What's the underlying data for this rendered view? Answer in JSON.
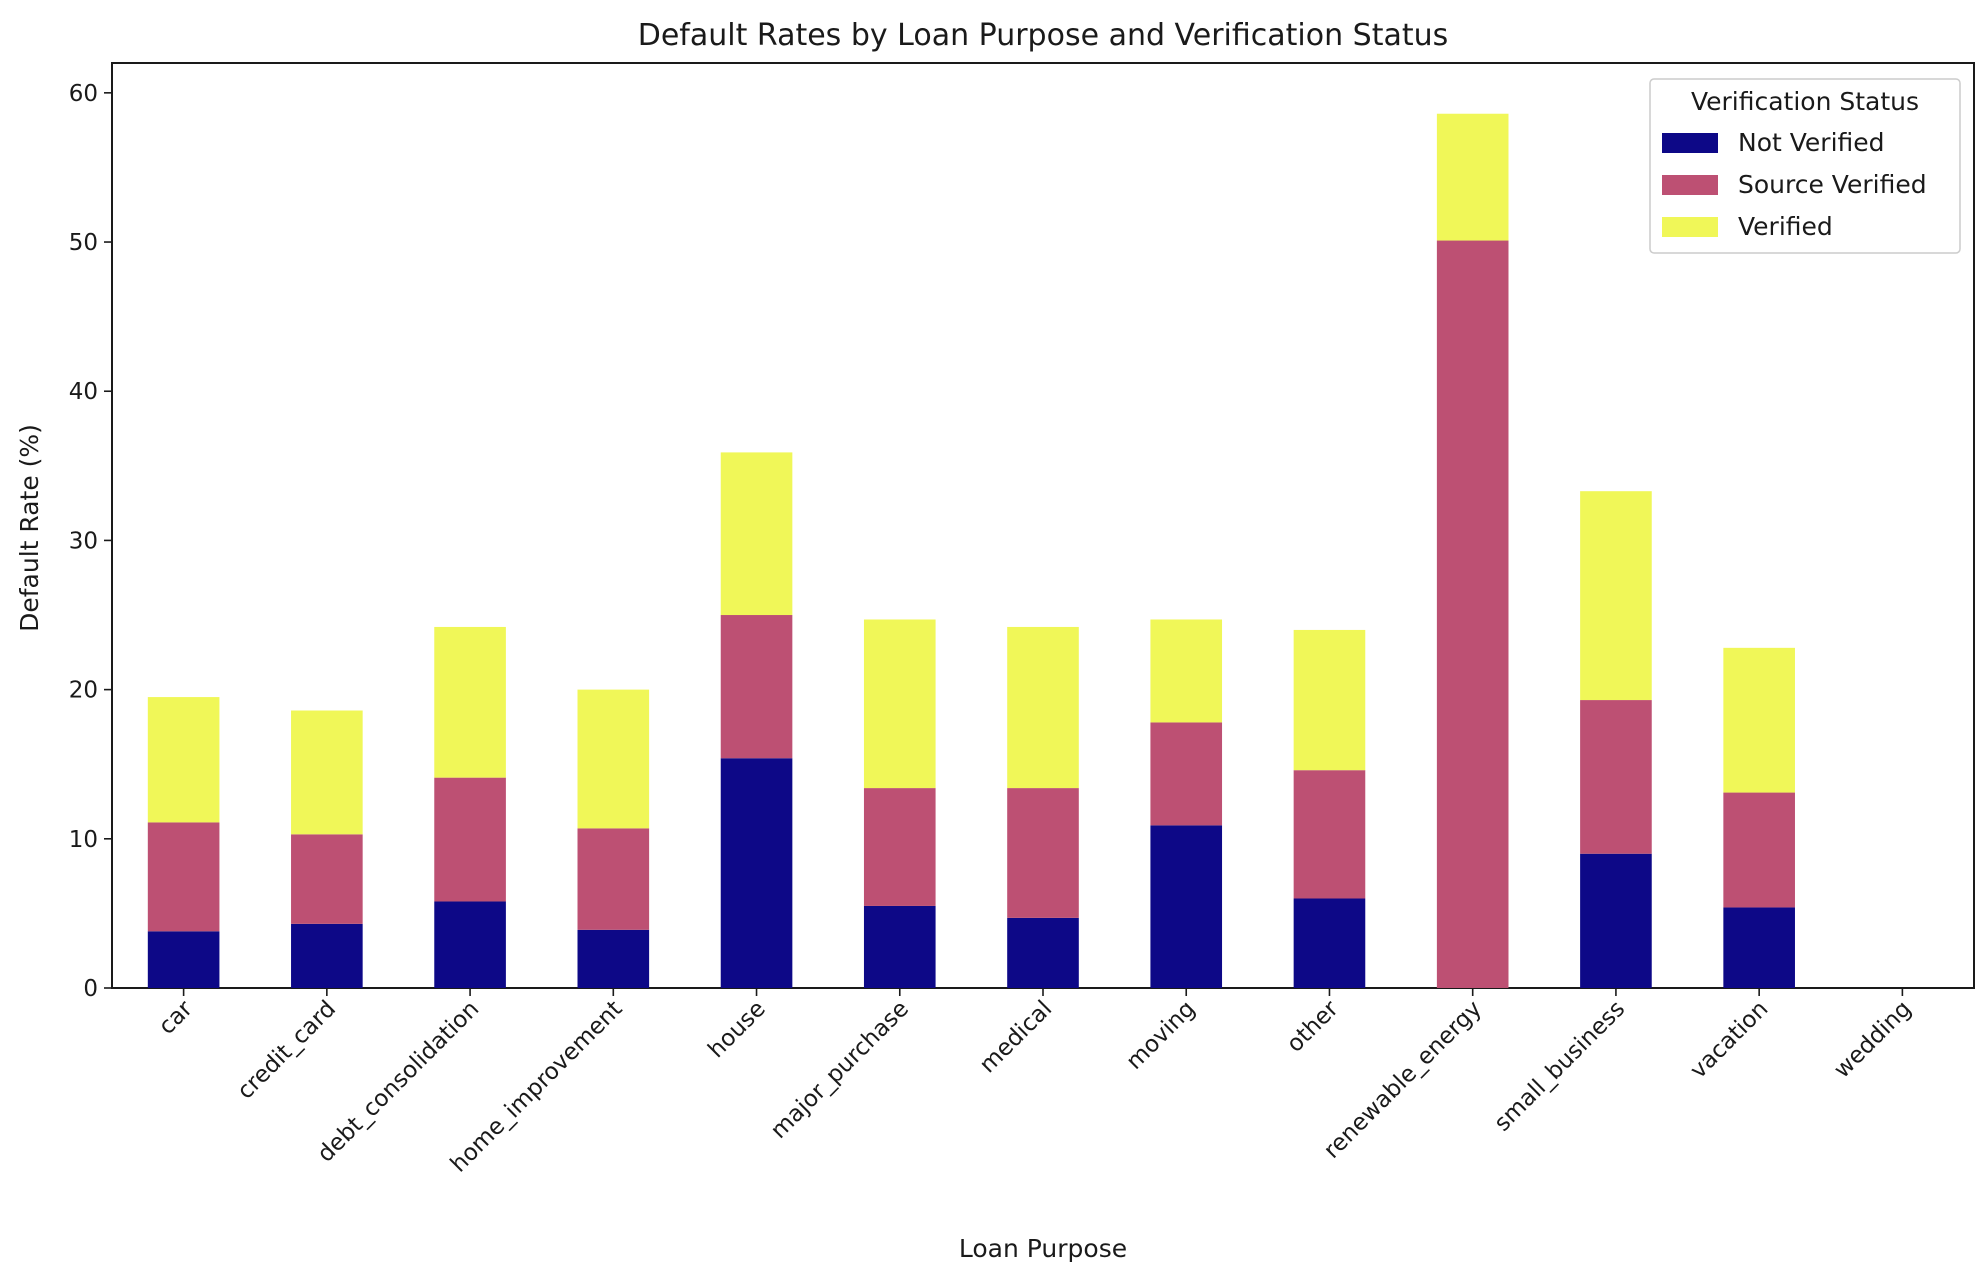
{
  "chart_data": {
    "type": "bar",
    "stacked": true,
    "title": "Default Rates by Loan Purpose and Verification Status",
    "xlabel": "Loan Purpose",
    "ylabel": "Default Rate (%)",
    "ylim": [
      0,
      62
    ],
    "yticks": [
      0,
      10,
      20,
      30,
      40,
      50,
      60
    ],
    "grid": false,
    "legend": {
      "title": "Verification Status",
      "position": "top-right"
    },
    "categories": [
      "car",
      "credit_card",
      "debt_consolidation",
      "home_improvement",
      "house",
      "major_purchase",
      "medical",
      "moving",
      "other",
      "renewable_energy",
      "small_business",
      "vacation",
      "wedding"
    ],
    "series": [
      {
        "name": "Not Verified",
        "color": "#0d0887",
        "values": [
          3.8,
          4.3,
          5.8,
          3.9,
          15.4,
          5.5,
          4.7,
          10.9,
          6.0,
          0.0,
          9.0,
          5.4,
          0.0
        ]
      },
      {
        "name": "Source Verified",
        "color": "#bd5073",
        "values": [
          7.3,
          6.0,
          8.3,
          6.8,
          9.6,
          7.9,
          8.7,
          6.9,
          8.6,
          50.1,
          10.3,
          7.7,
          0.0
        ]
      },
      {
        "name": "Verified",
        "color": "#f0f758",
        "values": [
          8.4,
          8.3,
          10.1,
          9.3,
          10.9,
          11.3,
          10.8,
          6.9,
          9.4,
          8.5,
          14.0,
          9.7,
          0.0
        ]
      }
    ]
  }
}
